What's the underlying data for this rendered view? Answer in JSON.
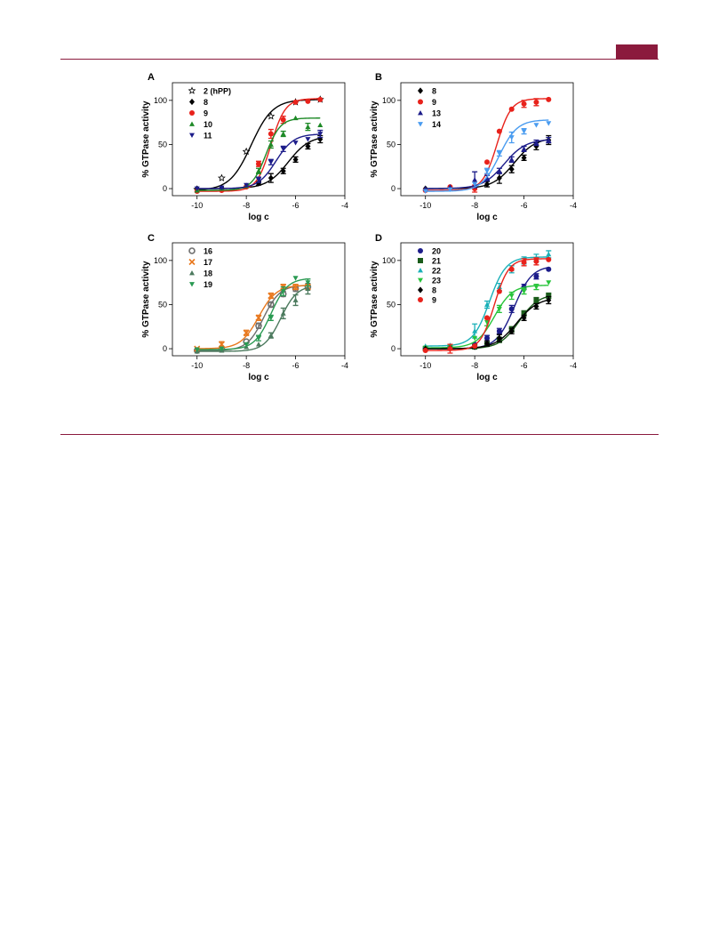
{
  "page": {
    "accent_color": "#8b1a3d"
  },
  "chart_data": [
    {
      "panel": "A",
      "type": "scatter",
      "xlabel": "log c",
      "ylabel": "% GTPase activity",
      "xlim": [
        -11,
        -4
      ],
      "ylim": [
        -8,
        120
      ],
      "xticks": [
        -10,
        -8,
        -6,
        -4
      ],
      "yticks": [
        0,
        50,
        100
      ],
      "legend_position": "top-left",
      "fit": "sigmoidal dose-response",
      "series": [
        {
          "name": "2 (hPP)",
          "color": "#000000",
          "marker": "star",
          "bold": false,
          "x": [
            -10,
            -9,
            -8,
            -7,
            -6,
            -5
          ],
          "y": [
            -1,
            12,
            42,
            82,
            98,
            101
          ],
          "err": [
            0,
            0,
            0,
            0,
            0,
            0
          ],
          "curve": {
            "bottom": -2,
            "top": 101,
            "log_ec50": -7.8,
            "hill": 1.0
          }
        },
        {
          "name": "8",
          "color": "#000000",
          "marker": "diamond",
          "bold": true,
          "x": [
            -10,
            -9,
            -8,
            -7.5,
            -7,
            -6.5,
            -6,
            -5.5,
            -5
          ],
          "y": [
            0,
            1,
            3,
            6,
            12,
            20,
            33,
            48,
            56
          ],
          "err": [
            0,
            0,
            0,
            2,
            5,
            3,
            3,
            3,
            4
          ],
          "curve": {
            "bottom": 0,
            "top": 60,
            "log_ec50": -6.3,
            "hill": 1.0
          }
        },
        {
          "name": "9",
          "color": "#e8221b",
          "marker": "circle",
          "bold": true,
          "x": [
            -10,
            -9,
            -8,
            -7.5,
            -7,
            -6.5,
            -6,
            -5.5,
            -5
          ],
          "y": [
            -3,
            -2,
            2,
            28,
            62,
            78,
            98,
            99,
            101
          ],
          "err": [
            0,
            0,
            0,
            3,
            5,
            4,
            0,
            0,
            0
          ],
          "curve": {
            "bottom": -3,
            "top": 102,
            "log_ec50": -7.0,
            "hill": 1.5
          }
        },
        {
          "name": "10",
          "color": "#1e8a27",
          "marker": "triangle",
          "bold": true,
          "x": [
            -10,
            -9,
            -8,
            -7.5,
            -7,
            -6.5,
            -6,
            -5.5,
            -5
          ],
          "y": [
            -2,
            0,
            3,
            20,
            50,
            62,
            80,
            70,
            72
          ],
          "err": [
            0,
            0,
            0,
            3,
            4,
            3,
            0,
            4,
            0
          ],
          "curve": {
            "bottom": -2,
            "top": 80,
            "log_ec50": -7.2,
            "hill": 1.5
          }
        },
        {
          "name": "11",
          "color": "#1c1c8a",
          "marker": "triangle-down",
          "bold": true,
          "x": [
            -10,
            -9,
            -8,
            -7.5,
            -7,
            -6.5,
            -6,
            -5.5,
            -5
          ],
          "y": [
            0,
            1,
            4,
            10,
            30,
            45,
            52,
            56,
            62
          ],
          "err": [
            0,
            0,
            0,
            3,
            3,
            3,
            0,
            0,
            4
          ],
          "curve": {
            "bottom": 0,
            "top": 62,
            "log_ec50": -6.8,
            "hill": 1.2
          }
        }
      ]
    },
    {
      "panel": "B",
      "type": "scatter",
      "xlabel": "log c",
      "ylabel": "% GTPase activity",
      "xlim": [
        -11,
        -4
      ],
      "ylim": [
        -8,
        120
      ],
      "xticks": [
        -10,
        -8,
        -6,
        -4
      ],
      "yticks": [
        0,
        50,
        100
      ],
      "legend_position": "top-left",
      "fit": "sigmoidal dose-response",
      "series": [
        {
          "name": "8",
          "color": "#000000",
          "marker": "diamond",
          "bold": true,
          "x": [
            -10,
            -9,
            -8,
            -7.5,
            -7,
            -6.5,
            -6,
            -5.5,
            -5
          ],
          "y": [
            0,
            1,
            2,
            5,
            12,
            22,
            35,
            48,
            55
          ],
          "err": [
            0,
            0,
            0,
            3,
            6,
            4,
            3,
            4,
            5
          ],
          "curve": {
            "bottom": 0,
            "top": 58,
            "log_ec50": -6.4,
            "hill": 1.0
          }
        },
        {
          "name": "9",
          "color": "#e8221b",
          "marker": "circle",
          "bold": true,
          "x": [
            -10,
            -9,
            -8,
            -7.5,
            -7,
            -6.5,
            -6,
            -5.5,
            -5
          ],
          "y": [
            -2,
            2,
            0,
            30,
            65,
            90,
            96,
            98,
            101
          ],
          "err": [
            0,
            0,
            4,
            0,
            0,
            0,
            4,
            4,
            0
          ],
          "curve": {
            "bottom": -2,
            "top": 102,
            "log_ec50": -7.1,
            "hill": 1.5
          }
        },
        {
          "name": "13",
          "color": "#1c1c8a",
          "marker": "triangle",
          "bold": true,
          "x": [
            -10,
            -9,
            -8,
            -7.5,
            -7,
            -6.5,
            -6,
            -5.5,
            -5
          ],
          "y": [
            0,
            2,
            10,
            12,
            20,
            33,
            45,
            52,
            55
          ],
          "err": [
            0,
            0,
            9,
            3,
            3,
            3,
            3,
            3,
            3
          ],
          "curve": {
            "bottom": 0,
            "top": 56,
            "log_ec50": -6.8,
            "hill": 1.0
          }
        },
        {
          "name": "14",
          "color": "#4a9cf0",
          "marker": "triangle-down",
          "bold": true,
          "x": [
            -10,
            -9,
            -8,
            -7.5,
            -7,
            -6.5,
            -6,
            -5.5,
            -5
          ],
          "y": [
            -3,
            -1,
            5,
            20,
            40,
            58,
            65,
            72,
            74
          ],
          "err": [
            0,
            0,
            0,
            3,
            3,
            6,
            3,
            0,
            0
          ],
          "curve": {
            "bottom": -3,
            "top": 78,
            "log_ec50": -7.0,
            "hill": 1.2
          }
        }
      ]
    },
    {
      "panel": "C",
      "type": "scatter",
      "xlabel": "log c",
      "ylabel": "% GTPase activity",
      "xlim": [
        -11,
        -4
      ],
      "ylim": [
        -8,
        120
      ],
      "xticks": [
        -10,
        -8,
        -6,
        -4
      ],
      "yticks": [
        0,
        50,
        100
      ],
      "legend_position": "top-left",
      "fit": "sigmoidal dose-response",
      "series": [
        {
          "name": "16",
          "color": "#6e6e6e",
          "marker": "circle-open",
          "bold": true,
          "x": [
            -10,
            -9,
            -8,
            -7.5,
            -7,
            -6.5,
            -6,
            -5.5
          ],
          "y": [
            -2,
            0,
            8,
            26,
            50,
            62,
            68,
            70
          ],
          "err": [
            0,
            0,
            0,
            3,
            3,
            3,
            3,
            3
          ],
          "curve": {
            "bottom": -2,
            "top": 72,
            "log_ec50": -7.3,
            "hill": 1.3
          }
        },
        {
          "name": "17",
          "color": "#e8781e",
          "marker": "cross",
          "bold": true,
          "x": [
            -10,
            -9,
            -8,
            -7.5,
            -7,
            -6.5,
            -6,
            -5.5
          ],
          "y": [
            0,
            5,
            18,
            35,
            60,
            70,
            70,
            70
          ],
          "err": [
            0,
            3,
            3,
            3,
            3,
            3,
            3,
            3
          ],
          "curve": {
            "bottom": 0,
            "top": 72,
            "log_ec50": -7.5,
            "hill": 1.2
          }
        },
        {
          "name": "18",
          "color": "#4c7a5e",
          "marker": "triangle",
          "bold": true,
          "x": [
            -10,
            -9,
            -8,
            -7.5,
            -7,
            -6.5,
            -6,
            -5.5
          ],
          "y": [
            -3,
            -2,
            2,
            5,
            15,
            40,
            55,
            68
          ],
          "err": [
            0,
            0,
            0,
            0,
            3,
            6,
            6,
            6
          ],
          "curve": {
            "bottom": -3,
            "top": 72,
            "log_ec50": -6.6,
            "hill": 1.3
          }
        },
        {
          "name": "19",
          "color": "#2a9a52",
          "marker": "triangle-down",
          "bold": true,
          "x": [
            -10,
            -9,
            -8,
            -7.5,
            -7,
            -6.5,
            -6,
            -5.5
          ],
          "y": [
            -1,
            0,
            5,
            12,
            35,
            65,
            80,
            75
          ],
          "err": [
            0,
            0,
            0,
            3,
            3,
            5,
            0,
            4
          ],
          "curve": {
            "bottom": -1,
            "top": 80,
            "log_ec50": -7.0,
            "hill": 1.3
          }
        }
      ]
    },
    {
      "panel": "D",
      "type": "scatter",
      "xlabel": "log c",
      "ylabel": "% GTPase activity",
      "xlim": [
        -11,
        -4
      ],
      "ylim": [
        -8,
        120
      ],
      "xticks": [
        -10,
        -8,
        -6,
        -4
      ],
      "yticks": [
        0,
        50,
        100
      ],
      "legend_position": "top-left",
      "fit": "sigmoidal dose-response",
      "series": [
        {
          "name": "20",
          "color": "#1c1c8a",
          "marker": "circle",
          "bold": true,
          "x": [
            -10,
            -9,
            -8,
            -7.5,
            -7,
            -6.5,
            -6,
            -5.5,
            -5
          ],
          "y": [
            0,
            1,
            5,
            12,
            20,
            45,
            70,
            82,
            90
          ],
          "err": [
            0,
            0,
            0,
            3,
            3,
            4,
            3,
            3,
            0
          ],
          "curve": {
            "bottom": 0,
            "top": 94,
            "log_ec50": -6.4,
            "hill": 1.2
          }
        },
        {
          "name": "21",
          "color": "#1a5c1a",
          "marker": "square",
          "bold": true,
          "x": [
            -10,
            -9,
            -8,
            -7.5,
            -7,
            -6.5,
            -6,
            -5.5,
            -5
          ],
          "y": [
            0,
            1,
            2,
            5,
            10,
            22,
            40,
            55,
            60
          ],
          "err": [
            0,
            0,
            0,
            0,
            3,
            3,
            3,
            3,
            3
          ],
          "curve": {
            "bottom": 0,
            "top": 62,
            "log_ec50": -6.2,
            "hill": 1.1
          }
        },
        {
          "name": "22",
          "color": "#1ab0b8",
          "marker": "triangle",
          "bold": true,
          "x": [
            -10,
            -9,
            -8,
            -7.5,
            -7,
            -6.5,
            -6,
            -5.5,
            -5
          ],
          "y": [
            3,
            4,
            20,
            50,
            70,
            90,
            100,
            103,
            107
          ],
          "err": [
            0,
            0,
            8,
            4,
            4,
            4,
            4,
            4,
            4
          ],
          "curve": {
            "bottom": 3,
            "top": 104,
            "log_ec50": -7.4,
            "hill": 1.3
          }
        },
        {
          "name": "23",
          "color": "#27c43a",
          "marker": "triangle-down",
          "bold": true,
          "x": [
            -10,
            -9,
            -8,
            -7.5,
            -7,
            -6.5,
            -6,
            -5.5,
            -5
          ],
          "y": [
            1,
            2,
            12,
            30,
            45,
            60,
            65,
            70,
            75
          ],
          "err": [
            0,
            0,
            0,
            4,
            4,
            4,
            3,
            3,
            0
          ],
          "curve": {
            "bottom": 1,
            "top": 72,
            "log_ec50": -7.2,
            "hill": 1.2
          }
        },
        {
          "name": "8",
          "color": "#000000",
          "marker": "diamond",
          "bold": true,
          "x": [
            -10,
            -9,
            -8,
            -7.5,
            -7,
            -6.5,
            -6,
            -5.5,
            -5
          ],
          "y": [
            0,
            1,
            2,
            6,
            12,
            20,
            35,
            48,
            55
          ],
          "err": [
            0,
            0,
            0,
            3,
            4,
            3,
            3,
            3,
            4
          ],
          "curve": {
            "bottom": 0,
            "top": 58,
            "log_ec50": -6.3,
            "hill": 1.0
          }
        },
        {
          "name": "9",
          "color": "#e8221b",
          "marker": "circle",
          "bold": true,
          "x": [
            -10,
            -9,
            -8,
            -7.5,
            -7,
            -6.5,
            -6,
            -5.5,
            -5
          ],
          "y": [
            -2,
            0,
            3,
            35,
            65,
            90,
            98,
            99,
            101
          ],
          "err": [
            0,
            5,
            0,
            0,
            0,
            0,
            4,
            4,
            0
          ],
          "curve": {
            "bottom": -2,
            "top": 102,
            "log_ec50": -7.2,
            "hill": 1.5
          }
        }
      ]
    }
  ]
}
